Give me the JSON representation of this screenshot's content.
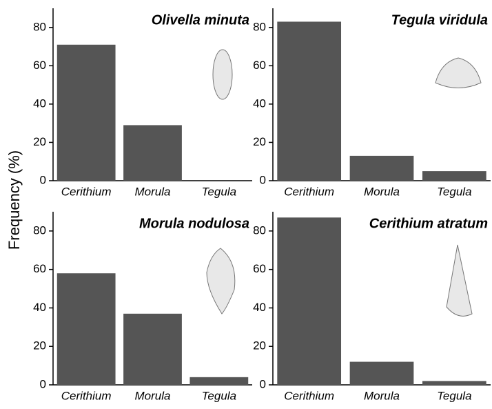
{
  "chart_data": [
    {
      "type": "bar",
      "title": "Olivella minuta",
      "ylabel": "Frequency (%)",
      "categories": [
        "Cerithium",
        "Morula",
        "Tegula"
      ],
      "values": [
        71,
        29,
        0
      ],
      "color": "#555555",
      "ylim": [
        0,
        90
      ],
      "yticks": [
        0,
        20,
        40,
        60,
        80
      ]
    },
    {
      "type": "bar",
      "title": "Tegula viridula",
      "categories": [
        "Cerithium",
        "Morula",
        "Tegula"
      ],
      "values": [
        83,
        13,
        5
      ],
      "color": "#555555",
      "ylim": [
        0,
        90
      ],
      "yticks": [
        0,
        20,
        40,
        60,
        80
      ]
    },
    {
      "type": "bar",
      "title": "Morula nodulosa",
      "categories": [
        "Cerithium",
        "Morula",
        "Tegula"
      ],
      "values": [
        58,
        37,
        4
      ],
      "color": "#555555",
      "ylim": [
        0,
        90
      ],
      "yticks": [
        0,
        20,
        40,
        60,
        80
      ]
    },
    {
      "type": "bar",
      "title": "Cerithium atratum",
      "categories": [
        "Cerithium",
        "Morula",
        "Tegula"
      ],
      "values": [
        87,
        12,
        2
      ],
      "color": "#555555",
      "ylim": [
        0,
        90
      ],
      "yticks": [
        0,
        20,
        40,
        60,
        80
      ]
    }
  ]
}
